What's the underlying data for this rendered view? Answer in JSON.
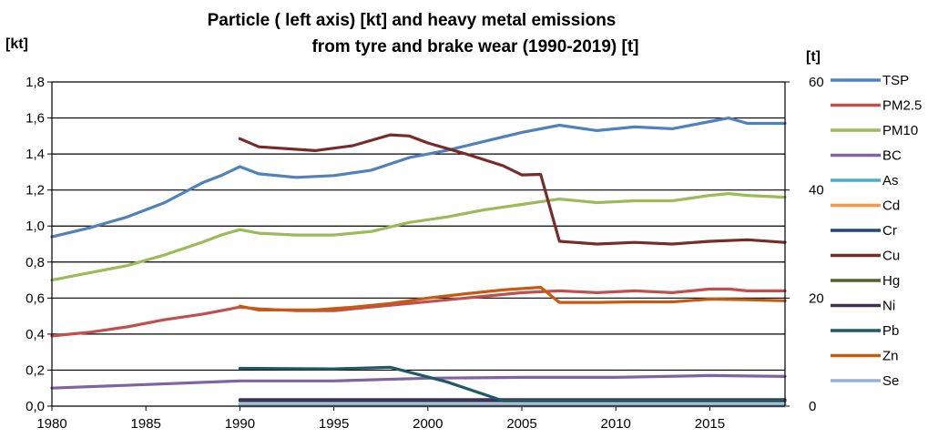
{
  "chart_data": {
    "type": "line",
    "title_line1": "Particle ( left axis) [kt] and heavy metal emissions",
    "title_line2": "from tyre and brake wear (1990-2019) [t]",
    "left_axis_unit": "[kt]",
    "right_axis_unit": "[t]",
    "xlim": [
      1980,
      2019
    ],
    "x_ticks": [
      1980,
      1985,
      1990,
      1995,
      2000,
      2005,
      2010,
      2015
    ],
    "x_tick_labels": [
      "1980",
      "1985",
      "1990",
      "1995",
      "2000",
      "2005",
      "2010",
      "2015"
    ],
    "ylim_left": [
      0,
      1.8
    ],
    "y_ticks_left": [
      0,
      0.2,
      0.4,
      0.6,
      0.8,
      1.0,
      1.2,
      1.4,
      1.6,
      1.8
    ],
    "y_tick_labels_left": [
      "0,0",
      "0,2",
      "0,4",
      "0,6",
      "0,8",
      "1,0",
      "1,2",
      "1,4",
      "1,6",
      "1,8"
    ],
    "ylim_right": [
      0,
      60
    ],
    "y_ticks_right": [
      0,
      20,
      40,
      60
    ],
    "y_tick_labels_right": [
      "0",
      "20",
      "40",
      "60"
    ],
    "grid": "horizontal",
    "legend_position": "right",
    "series": [
      {
        "name": "TSP",
        "axis": "left",
        "color": "#4f81bd",
        "x": [
          1980,
          1982,
          1984,
          1986,
          1988,
          1989,
          1990,
          1991,
          1993,
          1995,
          1997,
          1999,
          2001,
          2003,
          2005,
          2007,
          2009,
          2011,
          2013,
          2015,
          2016,
          2017,
          2019
        ],
        "y": [
          0.94,
          0.99,
          1.05,
          1.13,
          1.24,
          1.28,
          1.33,
          1.29,
          1.27,
          1.28,
          1.31,
          1.38,
          1.42,
          1.47,
          1.52,
          1.56,
          1.53,
          1.55,
          1.54,
          1.58,
          1.6,
          1.57,
          1.57
        ]
      },
      {
        "name": "PM2.5",
        "axis": "left",
        "color": "#c0504d",
        "x": [
          1980,
          1982,
          1984,
          1986,
          1988,
          1989,
          1990,
          1991,
          1993,
          1995,
          1997,
          1999,
          2001,
          2003,
          2005,
          2007,
          2009,
          2011,
          2013,
          2015,
          2016,
          2017,
          2019
        ],
        "y": [
          0.39,
          0.41,
          0.44,
          0.48,
          0.51,
          0.53,
          0.55,
          0.54,
          0.53,
          0.53,
          0.55,
          0.57,
          0.59,
          0.61,
          0.63,
          0.64,
          0.63,
          0.64,
          0.63,
          0.65,
          0.65,
          0.64,
          0.64
        ]
      },
      {
        "name": "PM10",
        "axis": "left",
        "color": "#9bbb59",
        "x": [
          1980,
          1982,
          1984,
          1986,
          1988,
          1989,
          1990,
          1991,
          1993,
          1995,
          1997,
          1999,
          2001,
          2003,
          2005,
          2007,
          2009,
          2011,
          2013,
          2015,
          2016,
          2017,
          2019
        ],
        "y": [
          0.7,
          0.74,
          0.78,
          0.84,
          0.91,
          0.95,
          0.98,
          0.96,
          0.95,
          0.95,
          0.97,
          1.02,
          1.05,
          1.09,
          1.12,
          1.15,
          1.13,
          1.14,
          1.14,
          1.17,
          1.18,
          1.17,
          1.16
        ]
      },
      {
        "name": "BC",
        "axis": "left",
        "color": "#8064a2",
        "x": [
          1980,
          1985,
          1990,
          1995,
          2000,
          2005,
          2010,
          2015,
          2019
        ],
        "y": [
          0.1,
          0.12,
          0.14,
          0.14,
          0.155,
          0.16,
          0.16,
          0.17,
          0.165
        ]
      },
      {
        "name": "As",
        "axis": "right",
        "color": "#4bacc6",
        "x": [
          1990,
          2019
        ],
        "y": [
          0.3,
          0.3
        ]
      },
      {
        "name": "Cd",
        "axis": "right",
        "color": "#f79646",
        "x": [
          1990,
          2019
        ],
        "y": [
          0.2,
          0.2
        ]
      },
      {
        "name": "Cr",
        "axis": "right",
        "color": "#1f497d",
        "x": [
          1990,
          2019
        ],
        "y": [
          1.0,
          1.0
        ]
      },
      {
        "name": "Cu",
        "axis": "right",
        "color": "#772c2a",
        "x": [
          1990,
          1991,
          1994,
          1996,
          1998,
          1999,
          2000,
          2002,
          2004,
          2005,
          2006,
          2007,
          2009,
          2011,
          2013,
          2015,
          2017,
          2019
        ],
        "y": [
          49.5,
          48.0,
          47.3,
          48.2,
          50.2,
          50.0,
          48.7,
          46.7,
          44.5,
          42.8,
          42.9,
          30.5,
          30.0,
          30.3,
          30.0,
          30.5,
          30.8,
          30.3
        ]
      },
      {
        "name": "Hg",
        "axis": "right",
        "color": "#4f6228",
        "x": [
          1990,
          2019
        ],
        "y": [
          0.05,
          0.05
        ]
      },
      {
        "name": "Ni",
        "axis": "right",
        "color": "#403151",
        "x": [
          1990,
          2019
        ],
        "y": [
          1.2,
          1.2
        ]
      },
      {
        "name": "Pb",
        "axis": "right",
        "color": "#215968",
        "x": [
          1990,
          1995,
          1998,
          2001,
          2004,
          2019
        ],
        "y": [
          7.0,
          6.9,
          7.2,
          4.5,
          1.0,
          1.0
        ]
      },
      {
        "name": "Zn",
        "axis": "right",
        "color": "#c55a11",
        "x": [
          1990,
          1991,
          1994,
          1996,
          1998,
          2000,
          2002,
          2004,
          2006,
          2007,
          2009,
          2011,
          2013,
          2015,
          2017,
          2019
        ],
        "y": [
          18.5,
          17.8,
          17.8,
          18.3,
          19.0,
          20.0,
          20.8,
          21.5,
          22.0,
          19.2,
          19.2,
          19.3,
          19.3,
          19.8,
          19.7,
          19.5
        ]
      },
      {
        "name": "Se",
        "axis": "right",
        "color": "#8db3e2",
        "x": [
          1990,
          2019
        ],
        "y": [
          0.1,
          0.1
        ]
      }
    ]
  }
}
